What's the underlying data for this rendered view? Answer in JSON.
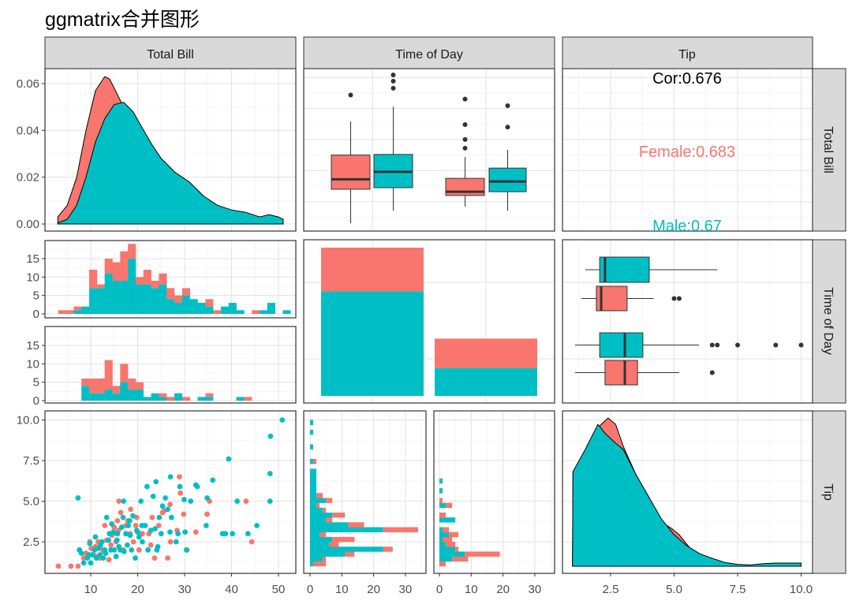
{
  "title": "ggmatrix合并图形",
  "chart_data": {
    "type": "pairs-matrix",
    "title": "ggmatrix合并图形",
    "colors": {
      "Female": "#F8766D",
      "Male": "#00BFC4"
    },
    "strips_top": [
      "Total Bill",
      "Time of Day",
      "Tip"
    ],
    "strips_right": [
      "Total Bill",
      "Time of Day",
      "Tip"
    ],
    "grid": true,
    "axes": {
      "density_y_ticks": [
        "0.00",
        "0.02",
        "0.04",
        "0.06"
      ],
      "count_y_ticks": [
        "0",
        "5",
        "10",
        "15"
      ],
      "tip_y_ticks": [
        "2.5",
        "5.0",
        "7.5",
        "10.0"
      ],
      "bill_x_ticks": [
        "10",
        "20",
        "30",
        "40",
        "50"
      ],
      "count_x_ticks": [
        "0",
        "10",
        "20",
        "30"
      ],
      "tip_x_ticks": [
        "2.5",
        "5.0",
        "7.5",
        "10.0"
      ]
    },
    "bill_density": {
      "Female": [
        [
          3,
          0.003
        ],
        [
          5,
          0.008
        ],
        [
          7,
          0.02
        ],
        [
          9,
          0.04
        ],
        [
          11,
          0.057
        ],
        [
          13,
          0.063
        ],
        [
          14,
          0.062
        ],
        [
          15,
          0.058
        ],
        [
          17,
          0.05
        ],
        [
          20,
          0.04
        ],
        [
          23,
          0.03
        ],
        [
          26,
          0.022
        ],
        [
          30,
          0.015
        ],
        [
          35,
          0.009
        ],
        [
          40,
          0.005
        ],
        [
          44,
          0.004
        ],
        [
          48,
          0.002
        ],
        [
          51,
          0.001
        ]
      ],
      "Male": [
        [
          3,
          0.0005
        ],
        [
          5,
          0.002
        ],
        [
          7,
          0.008
        ],
        [
          9,
          0.02
        ],
        [
          11,
          0.035
        ],
        [
          13,
          0.045
        ],
        [
          15,
          0.051
        ],
        [
          17,
          0.052
        ],
        [
          19,
          0.048
        ],
        [
          21,
          0.041
        ],
        [
          23,
          0.034
        ],
        [
          25,
          0.028
        ],
        [
          28,
          0.022
        ],
        [
          31,
          0.018
        ],
        [
          34,
          0.012
        ],
        [
          37,
          0.008
        ],
        [
          40,
          0.006
        ],
        [
          43,
          0.005
        ],
        [
          46,
          0.003
        ],
        [
          48,
          0.004
        ],
        [
          50,
          0.003
        ],
        [
          51,
          0.002
        ]
      ]
    },
    "bill_boxplots": [
      {
        "time": "Dinner",
        "sex": "Female",
        "min": 3.07,
        "q1": 14.0,
        "median": 17.2,
        "q3": 25.0,
        "max": 35.8,
        "outliers": [
          44.3
        ]
      },
      {
        "time": "Dinner",
        "sex": "Male",
        "min": 7.1,
        "q1": 14.5,
        "median": 19.6,
        "q3": 25.2,
        "max": 40.6,
        "outliers": [
          46.5,
          48.8,
          50.8
        ]
      },
      {
        "time": "Lunch",
        "sex": "Female",
        "min": 8.4,
        "q1": 12.0,
        "median": 13.2,
        "q3": 17.5,
        "max": 24.4,
        "outliers": [
          27.2,
          30.0,
          34.8,
          43.0
        ]
      },
      {
        "time": "Lunch",
        "sex": "Male",
        "min": 7.1,
        "q1": 13.2,
        "median": 16.5,
        "q3": 20.8,
        "max": 26.7,
        "outliers": [
          34.0,
          40.9
        ]
      }
    ],
    "correlations": {
      "overall": "Cor:0.676",
      "Female": "Female:0.683",
      "Male": "Male:0.67"
    },
    "bill_hist": {
      "bin_start": 3.07,
      "bin_width": 1.65,
      "upper": {
        "Male": [
          0,
          0,
          1,
          2,
          7,
          7,
          11,
          9,
          9,
          15,
          8,
          8,
          7,
          8,
          4,
          3,
          5,
          4,
          3,
          2,
          0,
          2,
          3,
          1,
          0,
          0,
          1,
          3,
          0,
          1
        ],
        "total": [
          1,
          1,
          2,
          2,
          12,
          8,
          15,
          14,
          17,
          19,
          10,
          12,
          9,
          11,
          7,
          5,
          7,
          4,
          3,
          4,
          1,
          2,
          3,
          1,
          0,
          1,
          1,
          3,
          0,
          1
        ]
      },
      "lower": {
        "Male": [
          0,
          0,
          0,
          4,
          2,
          2,
          3,
          2,
          5,
          3,
          3,
          1,
          2,
          1,
          0,
          2,
          0,
          0,
          1,
          1,
          0,
          0,
          0,
          1,
          0,
          0,
          0,
          0,
          0,
          0
        ],
        "total": [
          0,
          0,
          0,
          6,
          6,
          6,
          11,
          4,
          10,
          6,
          5,
          1,
          2,
          2,
          1,
          2,
          1,
          0,
          1,
          2,
          0,
          0,
          0,
          1,
          1,
          0,
          0,
          0,
          0,
          0
        ]
      }
    },
    "time_counts": [
      {
        "time": "Dinner",
        "Male": 124,
        "Female": 52
      },
      {
        "time": "Lunch",
        "Male": 33,
        "Female": 35
      }
    ],
    "tip_boxplots": [
      {
        "sex": "Male",
        "min": 1.5,
        "q1": 2.07,
        "median": 2.28,
        "q3": 4.02,
        "max": 6.7,
        "outliers": []
      },
      {
        "sex": "Female",
        "min": 1.35,
        "q1": 1.94,
        "median": 2.13,
        "q3": 3.15,
        "max": 4.2,
        "outliers": [
          5.0,
          5.2
        ]
      },
      {
        "sex": "Male",
        "min": 1.1,
        "q1": 2.07,
        "median": 3.06,
        "q3": 3.77,
        "max": 5.98,
        "outliers": [
          6.5,
          6.7,
          7.5,
          9.0,
          10.0
        ]
      },
      {
        "sex": "Female",
        "min": 1.1,
        "q1": 2.28,
        "median": 3.06,
        "q3": 3.56,
        "max": 5.2,
        "outliers": [
          6.5
        ]
      }
    ],
    "tip_hist": {
      "bin_start": 1.0,
      "bin_width": 0.3,
      "left": {
        "Male": [
          1,
          4,
          11,
          23,
          6,
          7,
          3,
          23,
          12,
          5,
          7,
          4,
          2,
          5,
          2,
          2,
          2,
          2,
          2,
          2,
          0,
          1,
          0,
          0,
          1,
          0,
          0,
          1,
          0,
          1
        ],
        "total": [
          5,
          5,
          14,
          26,
          9,
          14,
          5,
          34,
          17,
          7,
          11,
          5,
          3,
          7,
          4,
          2,
          2,
          2,
          2,
          2,
          0,
          2,
          0,
          0,
          1,
          0,
          0,
          1,
          0,
          1
        ]
      },
      "right": {
        "Male": [
          0,
          4,
          8,
          5,
          2,
          1,
          3,
          1,
          0,
          5,
          0,
          0,
          2,
          0,
          0,
          1,
          0,
          1,
          0,
          0,
          0,
          0,
          0,
          0,
          0,
          0,
          0,
          0,
          0,
          0
        ],
        "total": [
          2,
          9,
          19,
          6,
          5,
          4,
          6,
          3,
          0,
          5,
          2,
          0,
          4,
          1,
          0,
          1,
          0,
          1,
          0,
          0,
          0,
          0,
          0,
          0,
          0,
          0,
          0,
          0,
          0,
          0
        ]
      }
    },
    "tip_density": {
      "Female": [
        [
          1,
          0
        ],
        [
          1.02,
          0.3
        ],
        [
          1.3,
          0.33
        ],
        [
          1.7,
          0.38
        ],
        [
          2.0,
          0.44
        ],
        [
          2.4,
          0.47
        ],
        [
          2.7,
          0.45
        ],
        [
          3.0,
          0.38
        ],
        [
          3.5,
          0.29
        ],
        [
          4.0,
          0.22
        ],
        [
          4.5,
          0.14
        ],
        [
          4.9,
          0.12
        ],
        [
          5.2,
          0.1
        ],
        [
          5.6,
          0.06
        ],
        [
          6.0,
          0.04
        ],
        [
          6.5,
          0.02
        ],
        [
          7,
          0.005
        ],
        [
          8,
          0.002
        ],
        [
          10,
          0.001
        ]
      ],
      "Male": [
        [
          1,
          0
        ],
        [
          1.02,
          0.3
        ],
        [
          1.5,
          0.37
        ],
        [
          2.0,
          0.45
        ],
        [
          2.3,
          0.42
        ],
        [
          2.7,
          0.39
        ],
        [
          3.0,
          0.37
        ],
        [
          3.5,
          0.29
        ],
        [
          4.0,
          0.22
        ],
        [
          4.5,
          0.15
        ],
        [
          5.0,
          0.1
        ],
        [
          5.5,
          0.065
        ],
        [
          6.0,
          0.04
        ],
        [
          6.5,
          0.025
        ],
        [
          7,
          0.012
        ],
        [
          7.5,
          0.006
        ],
        [
          8,
          0.004
        ],
        [
          8.5,
          0.008
        ],
        [
          9,
          0.01
        ],
        [
          10,
          0.01
        ]
      ]
    },
    "scatter": {
      "Male": [
        [
          50.8,
          10
        ],
        [
          48.3,
          9
        ],
        [
          48.2,
          6.7
        ],
        [
          48.2,
          5
        ],
        [
          45.4,
          3.5
        ],
        [
          41.2,
          5
        ],
        [
          40.2,
          3
        ],
        [
          39.4,
          7.6
        ],
        [
          38.1,
          3
        ],
        [
          38.7,
          3
        ],
        [
          34.8,
          5.2
        ],
        [
          34.6,
          3.5
        ],
        [
          32.7,
          5.9
        ],
        [
          32.4,
          6
        ],
        [
          30.4,
          2
        ],
        [
          30.1,
          3.1
        ],
        [
          29.9,
          5.1
        ],
        [
          29,
          5.9
        ],
        [
          28.6,
          3
        ],
        [
          28.2,
          2.5
        ],
        [
          27.2,
          4
        ],
        [
          26.9,
          3.1
        ],
        [
          26.4,
          4.5
        ],
        [
          25.9,
          5.2
        ],
        [
          25.3,
          4.7
        ],
        [
          24.6,
          4
        ],
        [
          24.1,
          2
        ],
        [
          23.7,
          3.3
        ],
        [
          23.3,
          5.3
        ],
        [
          22.8,
          3.2
        ],
        [
          22.2,
          2
        ],
        [
          21.6,
          3.5
        ],
        [
          20.9,
          3.5
        ],
        [
          20.7,
          5
        ],
        [
          20.3,
          2.8
        ],
        [
          19.8,
          3.2
        ],
        [
          19.5,
          1.5
        ],
        [
          18.7,
          2
        ],
        [
          18.3,
          3.8
        ],
        [
          18,
          3.5
        ],
        [
          17.8,
          2.3
        ],
        [
          17.5,
          3
        ],
        [
          17.1,
          1.9
        ],
        [
          16.6,
          3.4
        ],
        [
          16.3,
          2
        ],
        [
          16,
          2.2
        ],
        [
          15.7,
          3
        ],
        [
          15.4,
          1.6
        ],
        [
          15,
          2
        ],
        [
          14.8,
          3.1
        ],
        [
          14.3,
          2
        ],
        [
          14,
          3
        ],
        [
          13.4,
          4
        ],
        [
          13,
          2
        ],
        [
          12.7,
          1.5
        ],
        [
          12.4,
          2.5
        ],
        [
          12,
          1.7
        ],
        [
          11.6,
          2.1
        ],
        [
          11.2,
          1.5
        ],
        [
          10.8,
          2
        ],
        [
          10.3,
          1.7
        ],
        [
          10,
          1.2
        ],
        [
          9.6,
          1.7
        ],
        [
          9.3,
          1.5
        ],
        [
          8.5,
          1.2
        ],
        [
          8,
          1.8
        ],
        [
          7.6,
          2
        ],
        [
          7.3,
          5.2
        ],
        [
          11,
          2.8
        ],
        [
          13.8,
          2.6
        ],
        [
          17,
          5
        ],
        [
          19,
          4.1
        ],
        [
          22,
          5.9
        ],
        [
          25,
          3
        ],
        [
          27,
          6.5
        ],
        [
          21,
          2.5
        ],
        [
          16.9,
          4
        ],
        [
          15.6,
          2.6
        ],
        [
          13.2,
          1.8
        ],
        [
          12.1,
          2.3
        ],
        [
          9.8,
          2.4
        ],
        [
          14.5,
          3.6
        ],
        [
          18.4,
          2.9
        ],
        [
          20,
          3.1
        ],
        [
          23.9,
          6.2
        ],
        [
          24.3,
          2.2
        ],
        [
          31.3,
          5
        ],
        [
          36,
          6.3
        ],
        [
          43.5,
          3
        ]
      ],
      "Female": [
        [
          44.3,
          2.5
        ],
        [
          43.1,
          5
        ],
        [
          35.3,
          5
        ],
        [
          34.8,
          4.2
        ],
        [
          32.4,
          3.1
        ],
        [
          30.5,
          2
        ],
        [
          29.8,
          4.2
        ],
        [
          28.4,
          3.2
        ],
        [
          27,
          2.5
        ],
        [
          26.4,
          1.5
        ],
        [
          25.3,
          4.3
        ],
        [
          24.5,
          3.5
        ],
        [
          23.1,
          4
        ],
        [
          22.4,
          3
        ],
        [
          21,
          3
        ],
        [
          20.3,
          2
        ],
        [
          19.8,
          4
        ],
        [
          19.1,
          2.5
        ],
        [
          18.4,
          3
        ],
        [
          17.5,
          3.5
        ],
        [
          17,
          2
        ],
        [
          16.4,
          4.3
        ],
        [
          15.9,
          3.2
        ],
        [
          15.4,
          2.5
        ],
        [
          14.8,
          3
        ],
        [
          14.3,
          2.3
        ],
        [
          13.9,
          1.4
        ],
        [
          13.4,
          2.6
        ],
        [
          13,
          3.5
        ],
        [
          12.5,
          2
        ],
        [
          12,
          1.5
        ],
        [
          11.6,
          2.5
        ],
        [
          11.4,
          1.6
        ],
        [
          10.6,
          1.7
        ],
        [
          10.1,
          2.1
        ],
        [
          9.8,
          2.5
        ],
        [
          8.5,
          1.5
        ],
        [
          7.3,
          1
        ],
        [
          5.8,
          1
        ],
        [
          3.1,
          1
        ],
        [
          18.5,
          4.5
        ],
        [
          16,
          5
        ],
        [
          15,
          3.4
        ],
        [
          20.7,
          3
        ],
        [
          25.6,
          4.4
        ],
        [
          22.8,
          2.3
        ],
        [
          17.9,
          3.8
        ],
        [
          14.5,
          2.9
        ],
        [
          12.8,
          1.9
        ],
        [
          11,
          2.2
        ],
        [
          9,
          1.8
        ],
        [
          23.6,
          1.5
        ],
        [
          26.9,
          4.8
        ],
        [
          28.9,
          6.5
        ],
        [
          29.1,
          5.5
        ],
        [
          19.6,
          3.5
        ],
        [
          15.7,
          3.8
        ]
      ]
    }
  }
}
